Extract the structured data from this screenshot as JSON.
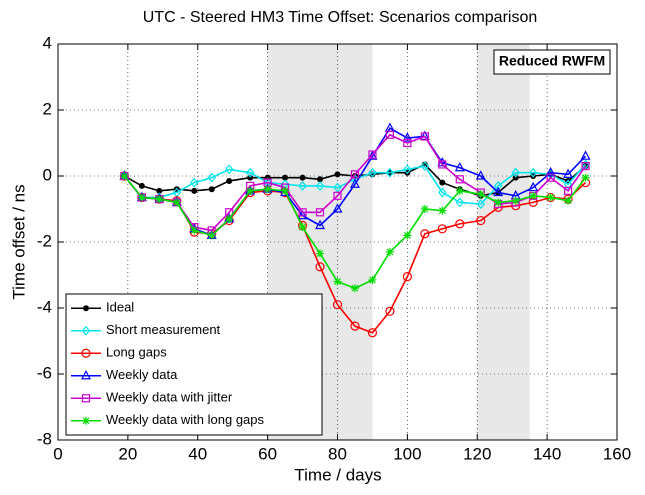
{
  "chart_data": {
    "type": "line",
    "title": "UTC - Steered HM3  Time Offset:  Scenarios comparison",
    "x_label": "Time / days",
    "y_label": "Time offset / ns",
    "annotation": "Reduced RWFM",
    "x": [
      19,
      24,
      29,
      34,
      39,
      44,
      49,
      55,
      60,
      65,
      70,
      75,
      80,
      85,
      90,
      95,
      100,
      105,
      110,
      115,
      121,
      126,
      131,
      136,
      141,
      146,
      151
    ],
    "series": [
      {
        "name": "Ideal",
        "color": "#000000",
        "marker": "dot",
        "values": [
          0,
          -0.3,
          -0.45,
          -0.4,
          -0.45,
          -0.4,
          -0.15,
          -0.05,
          -0.05,
          -0.05,
          -0.05,
          -0.1,
          0.05,
          0,
          0.05,
          0.1,
          0.1,
          0.35,
          -0.2,
          -0.4,
          -0.6,
          -0.5,
          -0.05,
          0,
          0.05,
          -0.15,
          0.3
        ]
      },
      {
        "name": "Short measurement",
        "color": "#00e5ee",
        "marker": "diamond",
        "values": [
          0,
          -0.65,
          -0.65,
          -0.5,
          -0.2,
          -0.05,
          0.2,
          0.1,
          -0.2,
          -0.25,
          -0.3,
          -0.3,
          -0.35,
          -0.1,
          0.1,
          0.1,
          0.2,
          0.3,
          -0.5,
          -0.8,
          -0.85,
          -0.3,
          0.1,
          0.1,
          0.05,
          -0.25,
          0.35
        ]
      },
      {
        "name": "Long gaps",
        "color": "#ff0000",
        "marker": "circle",
        "values": [
          0,
          -0.65,
          -0.7,
          -0.75,
          -1.7,
          -1.75,
          -1.35,
          -0.5,
          -0.45,
          -0.5,
          -1.5,
          -2.75,
          -3.9,
          -4.55,
          -4.75,
          -4.1,
          -3.05,
          -1.75,
          -1.6,
          -1.45,
          -1.35,
          -0.95,
          -0.9,
          -0.8,
          -0.65,
          -0.7,
          -0.2
        ]
      },
      {
        "name": "Weekly data",
        "color": "#0000ff",
        "marker": "triangle",
        "values": [
          0,
          -0.65,
          -0.7,
          -0.8,
          -1.6,
          -1.8,
          -1.3,
          -0.45,
          -0.4,
          -0.5,
          -1.2,
          -1.5,
          -1.0,
          -0.25,
          0.6,
          1.45,
          1.15,
          1.2,
          0.4,
          0.25,
          0,
          -0.5,
          -0.6,
          -0.35,
          0.1,
          0.05,
          0.6
        ]
      },
      {
        "name": "Weekly data with jitter",
        "color": "#cc00cc",
        "marker": "square",
        "values": [
          0,
          -0.65,
          -0.7,
          -0.8,
          -1.55,
          -1.65,
          -1.1,
          -0.3,
          -0.2,
          -0.35,
          -1.1,
          -1.1,
          -0.6,
          0.05,
          0.65,
          1.25,
          1.0,
          1.2,
          0.35,
          -0.1,
          -0.5,
          -0.85,
          -0.8,
          -0.6,
          -0.05,
          -0.45,
          0.3
        ]
      },
      {
        "name": "Weekly data with long gaps",
        "color": "#00dd00",
        "marker": "star",
        "values": [
          0,
          -0.65,
          -0.7,
          -0.8,
          -1.65,
          -1.8,
          -1.3,
          -0.45,
          -0.4,
          -0.45,
          -1.55,
          -2.35,
          -3.2,
          -3.4,
          -3.15,
          -2.3,
          -1.8,
          -1.0,
          -1.05,
          -0.45,
          -0.55,
          -0.8,
          -0.75,
          -0.6,
          -0.65,
          -0.75,
          -0.05
        ]
      }
    ],
    "shaded_regions": [
      [
        60,
        90
      ],
      [
        120,
        135
      ]
    ],
    "xlim": [
      0,
      160
    ],
    "xticks": [
      0,
      20,
      40,
      60,
      80,
      100,
      120,
      140,
      160
    ],
    "ylim": [
      -8,
      4
    ],
    "yticks": [
      -8,
      -6,
      -4,
      -2,
      0,
      2,
      4
    ],
    "grid": true,
    "legend": "lower left"
  }
}
